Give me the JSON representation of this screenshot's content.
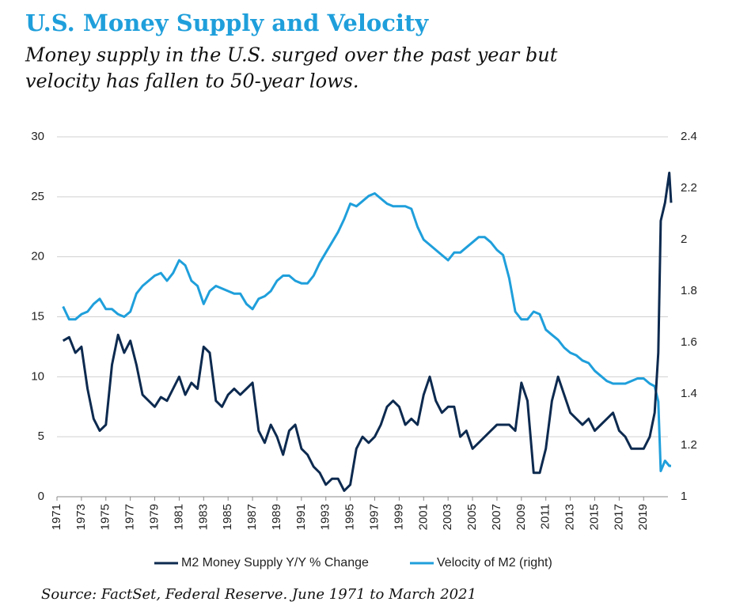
{
  "chart_data": {
    "type": "line",
    "title": "U.S. Money Supply and Velocity",
    "subtitle": [
      "Money supply in the U.S. surged over the past year but",
      "velocity has fallen to 50-year lows."
    ],
    "source": "Source: FactSet, Federal Reserve. June 1971 to March 2021",
    "x": [
      1971.5,
      1972,
      1972.5,
      1973,
      1973.5,
      1974,
      1974.5,
      1975,
      1975.5,
      1976,
      1976.5,
      1977,
      1977.5,
      1978,
      1978.5,
      1979,
      1979.5,
      1980,
      1980.5,
      1981,
      1981.5,
      1982,
      1982.5,
      1983,
      1983.5,
      1984,
      1984.5,
      1985,
      1985.5,
      1986,
      1986.5,
      1987,
      1987.5,
      1988,
      1988.5,
      1989,
      1989.5,
      1990,
      1990.5,
      1991,
      1991.5,
      1992,
      1992.5,
      1993,
      1993.5,
      1994,
      1994.5,
      1995,
      1995.5,
      1996,
      1996.5,
      1997,
      1997.5,
      1998,
      1998.5,
      1999,
      1999.5,
      2000,
      2000.5,
      2001,
      2001.5,
      2002,
      2002.5,
      2003,
      2003.5,
      2004,
      2004.5,
      2005,
      2005.5,
      2006,
      2006.5,
      2007,
      2007.5,
      2008,
      2008.5,
      2009,
      2009.5,
      2010,
      2010.5,
      2011,
      2011.5,
      2012,
      2012.5,
      2013,
      2013.5,
      2014,
      2014.5,
      2015,
      2015.5,
      2016,
      2016.5,
      2017,
      2017.5,
      2018,
      2018.5,
      2019,
      2019.5,
      2019.9,
      2020.2,
      2020.4,
      2020.75,
      2021.1,
      2021.25
    ],
    "series": [
      {
        "name": "M2 Money Supply Y/Y % Change",
        "color": "#0d2a4f",
        "values": [
          13,
          13.3,
          12,
          12.5,
          9,
          6.5,
          5.5,
          6,
          11,
          13.5,
          12,
          13,
          11,
          8.5,
          8,
          7.5,
          8.3,
          8,
          9,
          10,
          8.5,
          9.5,
          9,
          12.5,
          12,
          8,
          7.5,
          8.5,
          9,
          8.5,
          9,
          9.5,
          5.5,
          4.5,
          6,
          5,
          3.5,
          5.5,
          6,
          4,
          3.5,
          2.5,
          2,
          1,
          1.5,
          1.5,
          0.5,
          1,
          4,
          5,
          4.5,
          5,
          6,
          7.5,
          8,
          7.5,
          6,
          6.5,
          6,
          8.5,
          10,
          8,
          7,
          7.5,
          7.5,
          5,
          5.5,
          4,
          4.5,
          5,
          5.5,
          6,
          6,
          6,
          5.5,
          9.5,
          8,
          2,
          2,
          4,
          8,
          10,
          8.5,
          7,
          6.5,
          6,
          6.5,
          5.5,
          6,
          6.5,
          7,
          5.5,
          5,
          4,
          4,
          4,
          5,
          7,
          12,
          23,
          24.5,
          27,
          24.5
        ]
      },
      {
        "name": "Velocity of M2 (right)",
        "color": "#1f9fdb",
        "axis": "y2",
        "values": [
          1.74,
          1.69,
          1.69,
          1.71,
          1.72,
          1.75,
          1.77,
          1.73,
          1.73,
          1.71,
          1.7,
          1.72,
          1.79,
          1.82,
          1.84,
          1.86,
          1.87,
          1.84,
          1.87,
          1.92,
          1.9,
          1.84,
          1.82,
          1.75,
          1.8,
          1.82,
          1.81,
          1.8,
          1.79,
          1.79,
          1.75,
          1.73,
          1.77,
          1.78,
          1.8,
          1.84,
          1.86,
          1.86,
          1.84,
          1.83,
          1.83,
          1.86,
          1.91,
          1.95,
          1.99,
          2.03,
          2.08,
          2.14,
          2.13,
          2.15,
          2.17,
          2.18,
          2.16,
          2.14,
          2.13,
          2.13,
          2.13,
          2.12,
          2.05,
          2,
          1.98,
          1.96,
          1.94,
          1.92,
          1.95,
          1.95,
          1.97,
          1.99,
          2.01,
          2.01,
          1.99,
          1.96,
          1.94,
          1.85,
          1.72,
          1.69,
          1.69,
          1.72,
          1.71,
          1.65,
          1.63,
          1.61,
          1.58,
          1.56,
          1.55,
          1.53,
          1.52,
          1.49,
          1.47,
          1.45,
          1.44,
          1.44,
          1.44,
          1.45,
          1.46,
          1.46,
          1.44,
          1.43,
          1.37,
          1.1,
          1.14,
          1.12,
          1.12
        ]
      }
    ],
    "xlim": [
      1971,
      2021.25
    ],
    "xticks": [
      1971,
      1973,
      1975,
      1977,
      1979,
      1981,
      1983,
      1985,
      1987,
      1989,
      1991,
      1993,
      1995,
      1997,
      1999,
      2001,
      2003,
      2005,
      2007,
      2009,
      2011,
      2013,
      2015,
      2017,
      2019
    ],
    "ylim": [
      0,
      30
    ],
    "yticks": [
      0,
      5,
      10,
      15,
      20,
      25,
      30
    ],
    "y2lim": [
      1,
      2.4
    ],
    "y2ticks": [
      1,
      1.2,
      1.4,
      1.6,
      1.8,
      2,
      2.2,
      2.4
    ],
    "grid": true,
    "legend": "bottom"
  }
}
